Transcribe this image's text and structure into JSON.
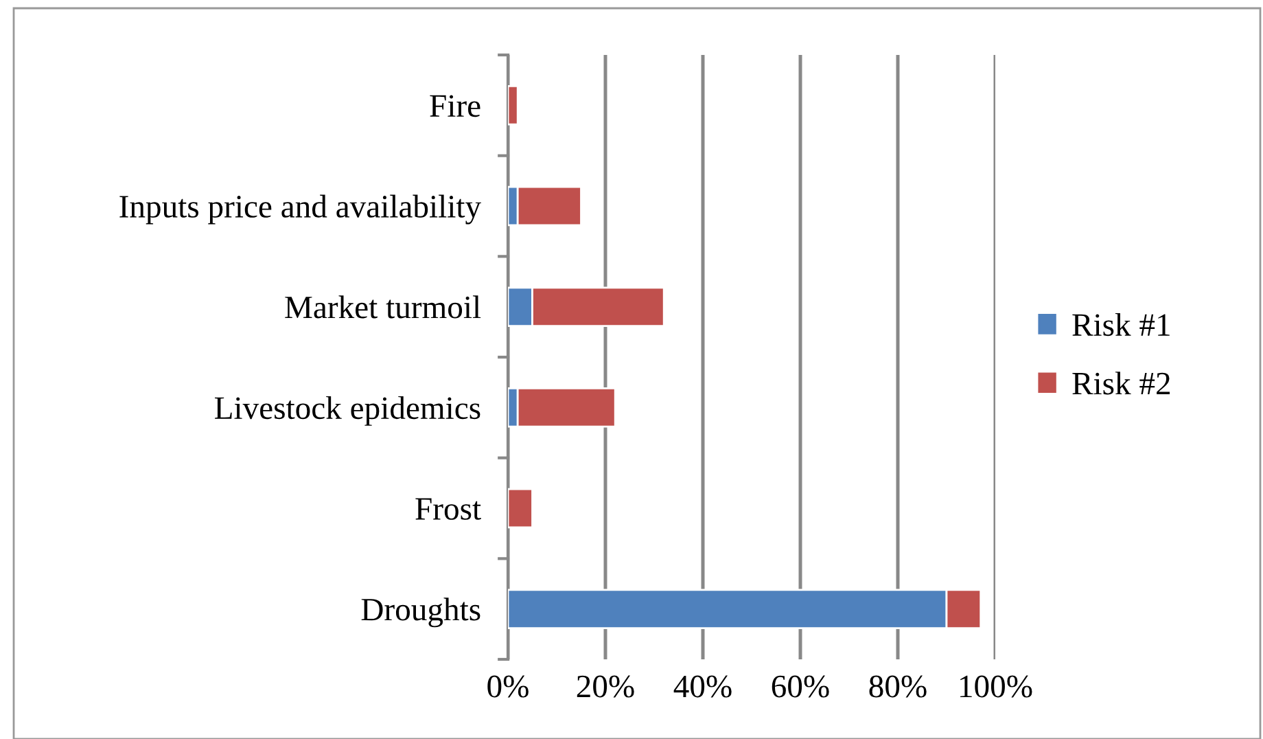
{
  "chart_data": {
    "type": "bar",
    "orientation": "horizontal",
    "stacked": true,
    "categories": [
      "Fire",
      "Inputs price and availability",
      "Market turmoil",
      "Livestock epidemics",
      "Frost",
      "Droughts"
    ],
    "series": [
      {
        "name": "Risk #1",
        "color": "#4f81bd",
        "values": [
          0,
          2,
          5,
          2,
          0,
          90
        ]
      },
      {
        "name": "Risk #2",
        "color": "#c0504d",
        "values": [
          2,
          13,
          27,
          20,
          5,
          7
        ]
      }
    ],
    "xlim": [
      0,
      100
    ],
    "xticks": [
      {
        "value": 0,
        "label": "0%"
      },
      {
        "value": 20,
        "label": "20%"
      },
      {
        "value": 40,
        "label": "40%"
      },
      {
        "value": 60,
        "label": "60%"
      },
      {
        "value": 80,
        "label": "80%"
      },
      {
        "value": 100,
        "label": "100%"
      }
    ],
    "grid": "x",
    "legend": "right"
  }
}
